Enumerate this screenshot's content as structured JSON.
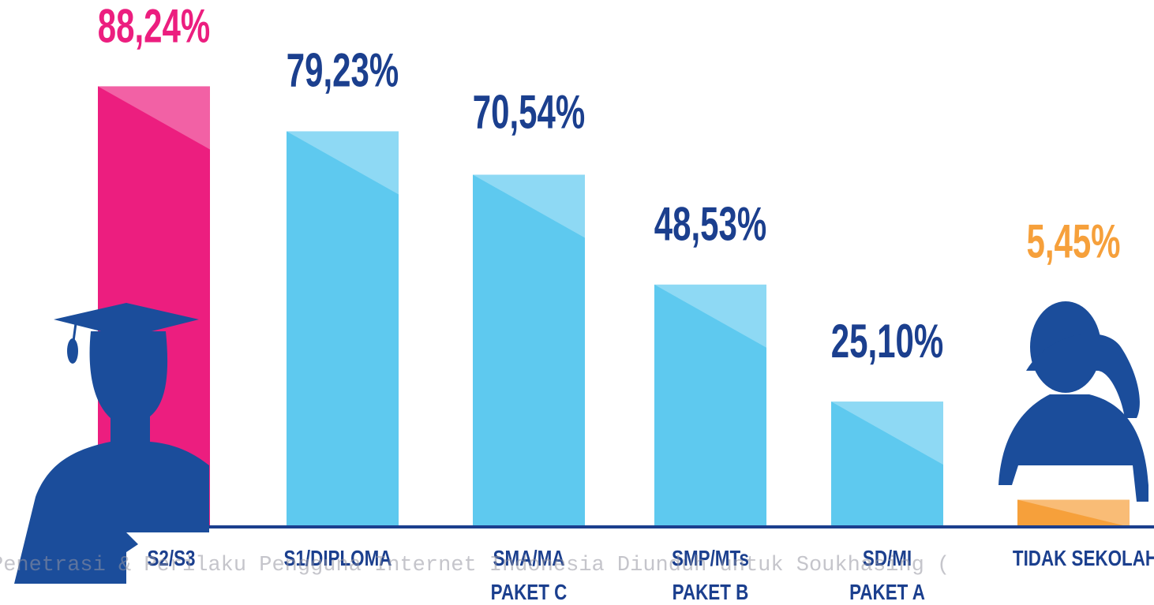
{
  "chart_data": {
    "type": "bar",
    "categories": [
      "S2/S3",
      "S1/DIPLOMA",
      "SMA/MA\nPAKET C",
      "SMP/MTs\nPAKET B",
      "SD/MI\nPAKET A",
      "TIDAK SEKOLAH"
    ],
    "values": [
      88.24,
      79.23,
      70.54,
      48.53,
      25.1,
      5.45
    ],
    "value_labels": [
      "88,24%",
      "79,23%",
      "70,54%",
      "48,53%",
      "25,10%",
      "5,45%"
    ],
    "colors": [
      "#ec1e7f",
      "#5ec9ef",
      "#5ec9ef",
      "#5ec9ef",
      "#5ec9ef",
      "#f6a03b"
    ],
    "label_colors": [
      "#ec1e7f",
      "#1b3f8e",
      "#1b3f8e",
      "#1b3f8e",
      "#1b3f8e",
      "#f6a03b"
    ],
    "watermark": "Penetrasi & Perilaku Pengguna Internet Indonesia Diunduh untuk Soukhasing ("
  }
}
